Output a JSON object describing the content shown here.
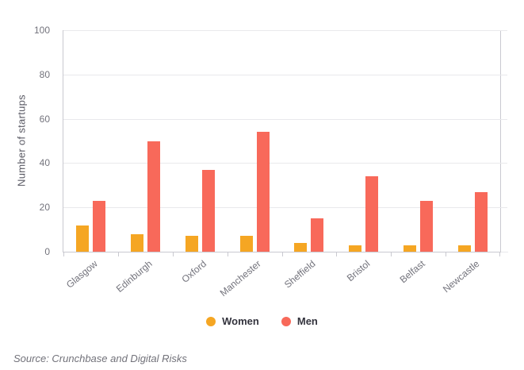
{
  "chart_data": {
    "type": "bar",
    "categories": [
      "Glasgow",
      "Edinburgh",
      "Oxford",
      "Manchester",
      "Sheffield",
      "Bristol",
      "Belfast",
      "Newcastle"
    ],
    "series": [
      {
        "name": "Women",
        "color": "#F5A623",
        "values": [
          12,
          8,
          7,
          7,
          4,
          3,
          3,
          3
        ]
      },
      {
        "name": "Men",
        "color": "#F8695A",
        "values": [
          23,
          50,
          37,
          54,
          15,
          34,
          23,
          27
        ]
      }
    ],
    "title": "",
    "xlabel": "",
    "ylabel": "Number of startups",
    "ylim": [
      0,
      100
    ],
    "yticks": [
      0,
      20,
      40,
      60,
      80,
      100
    ],
    "grid": true,
    "legend_position": "bottom-center"
  },
  "legend": {
    "entries": [
      {
        "label": "Women",
        "color": "#F5A623"
      },
      {
        "label": "Men",
        "color": "#F8695A"
      }
    ]
  },
  "source": {
    "text": "Source: Crunchbase and Digital Risks"
  },
  "colors": {
    "women": "#F5A623",
    "men": "#F8695A",
    "grid_line": "#e9e9ec",
    "axis_line": "#c9c9d0",
    "tick_label": "#73737c",
    "axis_title": "#5a5a64",
    "legend_text": "#33333d",
    "source_text": "#72727a",
    "background": "#ffffff"
  }
}
